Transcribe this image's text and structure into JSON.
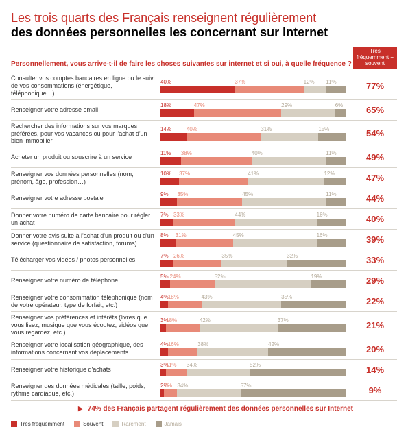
{
  "colors": {
    "accent": "#c8302a",
    "seg1": "#c8302a",
    "seg2": "#e88a78",
    "seg3": "#d6cfc2",
    "seg4": "#a89d8a",
    "text_muted": "#b3a998"
  },
  "title": {
    "line1": "Les trois quarts des Français renseignent régulièrement",
    "line2": "des données personnelles les concernant sur Internet"
  },
  "question": "Personnellement, vous arrive-t-il de faire les choses suivantes sur internet et si oui, à quelle fréquence ?",
  "freq_header": "Très fréquemment + souvent",
  "legend": [
    "Très fréquemment",
    "Souvent",
    "Rarement",
    "Jamais"
  ],
  "footer": "74% des Français partagent régulièrement des données personnelles sur Internet",
  "rows": [
    {
      "label": "Consulter vos comptes bancaires en ligne ou le suivi de vos consommations (énergétique, téléphonique…)",
      "segs": [
        40,
        37,
        12,
        11
      ],
      "total": "77%"
    },
    {
      "label": "Renseigner votre adresse email",
      "segs": [
        18,
        47,
        29,
        6
      ],
      "total": "65%"
    },
    {
      "label": "Rechercher des informations sur vos marques préférées, pour vos vacances ou pour l'achat d'un bien immobilier",
      "segs": [
        14,
        40,
        31,
        15
      ],
      "total": "54%"
    },
    {
      "label": "Acheter un produit ou souscrire à un service",
      "segs": [
        11,
        38,
        40,
        11
      ],
      "total": "49%"
    },
    {
      "label": "Renseigner vos données personnelles (nom, prénom, âge, profession…)",
      "segs": [
        10,
        37,
        41,
        12
      ],
      "total": "47%"
    },
    {
      "label": "Renseigner votre adresse postale",
      "segs": [
        9,
        35,
        45,
        11
      ],
      "total": "44%"
    },
    {
      "label": "Donner votre numéro de carte bancaire pour régler un achat",
      "segs": [
        7,
        33,
        44,
        16
      ],
      "total": "40%"
    },
    {
      "label": "Donner votre avis suite à l'achat d'un produit ou d'un service (questionnaire de satisfaction, forums)",
      "segs": [
        8,
        31,
        45,
        16
      ],
      "total": "39%"
    },
    {
      "label": "Télécharger vos vidéos / photos personnelles",
      "segs": [
        7,
        26,
        35,
        32
      ],
      "total": "33%"
    },
    {
      "label": "Renseigner votre numéro de téléphone",
      "segs": [
        5,
        24,
        52,
        19
      ],
      "total": "29%"
    },
    {
      "label": "Renseigner votre consommation téléphonique (nom de votre opérateur, type de forfait, etc.)",
      "segs": [
        4,
        18,
        43,
        35
      ],
      "total": "22%"
    },
    {
      "label": "Renseigner vos préférences et intérêts (livres que vous lisez, musique que vous écoutez, vidéos que vous regardez, etc.)",
      "segs": [
        3,
        18,
        42,
        37
      ],
      "total": "21%"
    },
    {
      "label": "Renseigner votre localisation géographique, des informations concernant vos déplacements",
      "segs": [
        4,
        16,
        38,
        42
      ],
      "total": "20%"
    },
    {
      "label": "Renseigner votre historique d'achats",
      "segs": [
        3,
        11,
        34,
        52
      ],
      "total": "14%"
    },
    {
      "label": "Renseigner des données médicales (taille, poids, rythme cardiaque, etc.)",
      "segs": [
        2,
        7,
        34,
        57
      ],
      "total": "9%"
    }
  ]
}
